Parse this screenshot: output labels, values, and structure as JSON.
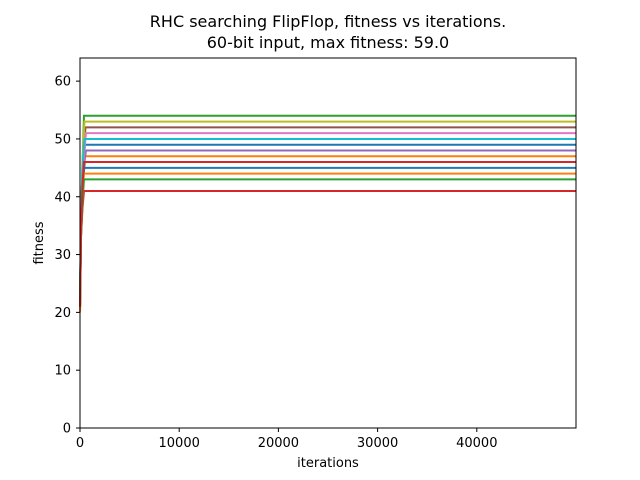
{
  "chart_data": {
    "type": "line",
    "title": "RHC searching FlipFlop, fitness vs iterations.",
    "subtitle": "60-bit input, max fitness: 59.0",
    "xlabel": "iterations",
    "ylabel": "fitness",
    "xlim": [
      0,
      50000
    ],
    "ylim": [
      0,
      64
    ],
    "xticks": [
      0,
      10000,
      20000,
      30000,
      40000
    ],
    "xtick_labels": [
      "0",
      "10000",
      "20000",
      "30000",
      "40000"
    ],
    "yticks": [
      0,
      10,
      20,
      30,
      40,
      50,
      60
    ],
    "ytick_labels": [
      "0",
      "10",
      "20",
      "30",
      "40",
      "50",
      "60"
    ],
    "grid": false,
    "legend": "none",
    "series": [
      {
        "color": "#1f77b4",
        "x": [
          0,
          100,
          250,
          500,
          50000
        ],
        "y": [
          22,
          35,
          44,
          49,
          49
        ]
      },
      {
        "color": "#ff7f0e",
        "x": [
          0,
          100,
          250,
          450,
          50000
        ],
        "y": [
          21,
          34,
          43,
          47,
          47
        ]
      },
      {
        "color": "#2ca02c",
        "x": [
          0,
          100,
          250,
          400,
          50000
        ],
        "y": [
          20,
          36,
          45,
          54,
          54
        ]
      },
      {
        "color": "#d62728",
        "x": [
          0,
          100,
          250,
          400,
          50000
        ],
        "y": [
          20,
          33,
          38,
          41,
          41
        ]
      },
      {
        "color": "#9467bd",
        "x": [
          0,
          100,
          300,
          600,
          50000
        ],
        "y": [
          21,
          35,
          44,
          48,
          48
        ]
      },
      {
        "color": "#8c564b",
        "x": [
          0,
          100,
          300,
          550,
          50000
        ],
        "y": [
          22,
          36,
          46,
          52,
          52
        ]
      },
      {
        "color": "#e377c2",
        "x": [
          0,
          100,
          300,
          600,
          50000
        ],
        "y": [
          20,
          35,
          45,
          51,
          51
        ]
      },
      {
        "color": "#7f7f7f",
        "x": [
          0,
          100,
          250,
          500,
          50000
        ],
        "y": [
          21,
          34,
          42,
          46,
          46
        ]
      },
      {
        "color": "#bcbd22",
        "x": [
          0,
          100,
          250,
          450,
          50000
        ],
        "y": [
          20,
          35,
          46,
          53,
          53
        ]
      },
      {
        "color": "#17becf",
        "x": [
          0,
          100,
          250,
          450,
          50000
        ],
        "y": [
          22,
          36,
          45,
          50,
          50
        ]
      },
      {
        "color": "#1f77b4",
        "x": [
          0,
          100,
          250,
          400,
          50000
        ],
        "y": [
          21,
          34,
          41,
          45,
          45
        ]
      },
      {
        "color": "#ff7f0e",
        "x": [
          0,
          100,
          250,
          400,
          50000
        ],
        "y": [
          20,
          33,
          40,
          44,
          44
        ]
      },
      {
        "color": "#2ca02c",
        "x": [
          0,
          100,
          250,
          400,
          50000
        ],
        "y": [
          21,
          33,
          39,
          43,
          43
        ]
      },
      {
        "color": "#d62728",
        "x": [
          0,
          100,
          250,
          400,
          50000
        ],
        "y": [
          21,
          34,
          42,
          46,
          46
        ]
      }
    ]
  }
}
